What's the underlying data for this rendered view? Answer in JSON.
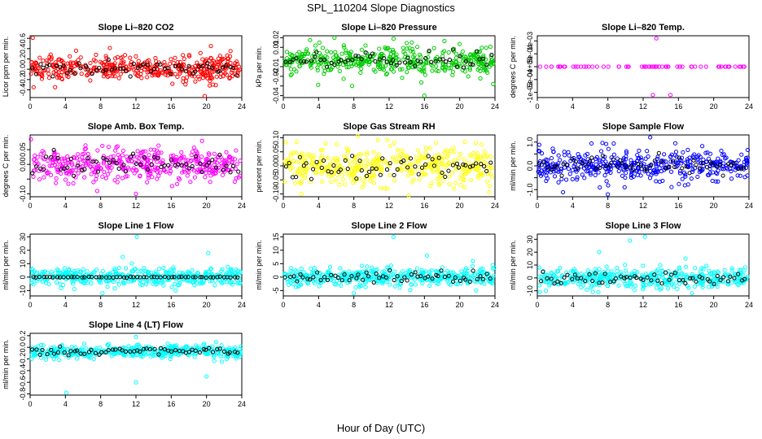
{
  "figure": {
    "title": "SPL_110204  Slope Diagnostics",
    "xlabel": "Hour of Day (UTC)"
  },
  "chart_data": [
    {
      "type": "scatter",
      "title": "Slope Li–820 CO2",
      "ylabel": "Licor ppm per min.",
      "xlim": [
        0,
        24
      ],
      "ylim": [
        -0.55,
        0.65
      ],
      "xticks": [
        0,
        4,
        8,
        12,
        16,
        20,
        24
      ],
      "yticks": [
        -0.4,
        -0.2,
        0.0,
        0.2,
        0.4,
        0.6
      ],
      "ytick_labels": [
        "-0.4",
        "-0.2",
        "0.0",
        "0.2",
        "0.4",
        "0.6"
      ],
      "point_color": "#ff0000",
      "n_points": 420,
      "n_black_points": 60,
      "center": 0.02,
      "spread": 0.13,
      "outliers": [
        [
          0.3,
          0.61
        ],
        [
          19.8,
          -0.52
        ],
        [
          20.5,
          0.45
        ],
        [
          0.4,
          -0.35
        ]
      ]
    },
    {
      "type": "scatter",
      "title": "Slope Li–820 Pressure",
      "ylabel": "kPa per min.",
      "xlim": [
        0,
        24
      ],
      "ylim": [
        -0.042,
        0.022
      ],
      "xticks": [
        0,
        4,
        8,
        12,
        16,
        20,
        24
      ],
      "yticks": [
        -0.04,
        -0.03,
        -0.02,
        -0.01,
        0.0,
        0.01,
        0.02
      ],
      "ytick_labels": [
        "-0.04",
        "",
        "-0.02",
        "-0.01",
        "",
        "0.01",
        "0.02"
      ],
      "point_color": "#00cc00",
      "n_points": 420,
      "n_black_points": 60,
      "center": -0.004,
      "spread": 0.007,
      "outliers": [
        [
          5.8,
          0.02
        ],
        [
          12.5,
          0.019
        ],
        [
          16.0,
          -0.04
        ],
        [
          7.8,
          -0.03
        ],
        [
          23.8,
          -0.028
        ]
      ]
    },
    {
      "type": "scatter",
      "title": "Slope Li–820 Temp.",
      "ylabel": "degrees C per min.",
      "xlim": [
        0,
        24
      ],
      "ylim": [
        -0.0012,
        0.0012
      ],
      "xticks": [
        0,
        4,
        8,
        12,
        16,
        20,
        24
      ],
      "yticks": [
        -0.001,
        -0.0005,
        0.0,
        0.0005,
        0.001
      ],
      "ytick_labels": [
        "-1e-03",
        "-5e-04",
        "0e+00",
        "5e-04",
        "1e-03"
      ],
      "point_color": "#ff00ff",
      "n_points": 70,
      "n_black_points": 0,
      "center": 0.0,
      "spread": 0.0,
      "outliers": [
        [
          13.5,
          0.0011
        ],
        [
          13.1,
          -0.0011
        ],
        [
          15.1,
          -0.0011
        ]
      ]
    },
    {
      "type": "scatter",
      "title": "Slope Amb. Box Temp.",
      "ylabel": "degrees C per min.",
      "xlim": [
        0,
        24
      ],
      "ylim": [
        -0.11,
        0.1
      ],
      "xticks": [
        0,
        4,
        8,
        12,
        16,
        20,
        24
      ],
      "yticks": [
        -0.1,
        -0.05,
        0.0,
        0.05
      ],
      "ytick_labels": [
        "-0.10",
        "",
        "0.00",
        "0.05"
      ],
      "point_color": "#ff00ff",
      "n_points": 420,
      "n_black_points": 60,
      "center": 0.0,
      "spread": 0.028,
      "outliers": [
        [
          0.1,
          0.085
        ],
        [
          12.0,
          -0.1
        ],
        [
          19.5,
          0.08
        ]
      ]
    },
    {
      "type": "scatter",
      "title": "Slope Gas Stream RH",
      "ylabel": "percent per min.",
      "xlim": [
        0,
        24
      ],
      "ylim": [
        -0.11,
        0.11
      ],
      "xticks": [
        0,
        4,
        8,
        12,
        16,
        20,
        24
      ],
      "yticks": [
        -0.1,
        -0.05,
        0.0,
        0.05,
        0.1
      ],
      "ytick_labels": [
        "-0.10",
        "-0.05",
        "0.00",
        "0.05",
        "0.10"
      ],
      "point_color": "#ffff00",
      "n_points": 420,
      "n_black_points": 60,
      "center": 0.0,
      "spread": 0.035,
      "outliers": [
        [
          1.5,
          0.085
        ],
        [
          11.5,
          -0.08
        ]
      ]
    },
    {
      "type": "scatter",
      "title": "Slope Sample Flow",
      "ylabel": "ml/min per min.",
      "xlim": [
        0,
        24
      ],
      "ylim": [
        -1.3,
        1.3
      ],
      "xticks": [
        0,
        4,
        8,
        12,
        16,
        20,
        24
      ],
      "yticks": [
        -1.0,
        -0.5,
        0.0,
        0.5,
        1.0
      ],
      "ytick_labels": [
        "-1.0",
        "",
        "0.0",
        "",
        "1.0"
      ],
      "point_color": "#0000ff",
      "n_points": 420,
      "n_black_points": 60,
      "center": 0.0,
      "spread": 0.33,
      "outliers": [
        [
          8.0,
          -1.2
        ],
        [
          12.8,
          1.2
        ],
        [
          9.9,
          -0.9
        ]
      ]
    },
    {
      "type": "scatter",
      "title": "Slope Line 1 Flow",
      "ylabel": "ml/min per min.",
      "xlim": [
        0,
        24
      ],
      "ylim": [
        -14,
        32
      ],
      "xticks": [
        0,
        4,
        8,
        12,
        16,
        20,
        24
      ],
      "yticks": [
        -10,
        0,
        10,
        20,
        30
      ],
      "ytick_labels": [
        "-10",
        "0",
        "10",
        "20",
        "30"
      ],
      "point_color": "#00ffff",
      "n_points": 420,
      "n_black_points": 60,
      "center": 0.0,
      "spread": 3.2,
      "outliers": [
        [
          12.1,
          30.0
        ],
        [
          10.5,
          15.0
        ],
        [
          16.5,
          -10.0
        ],
        [
          8.2,
          -12.0
        ],
        [
          20.2,
          18.0
        ]
      ]
    },
    {
      "type": "scatter",
      "title": "Slope Line 2 Flow",
      "ylabel": "ml/min per min.",
      "xlim": [
        0,
        24
      ],
      "ylim": [
        -7,
        16
      ],
      "xticks": [
        0,
        4,
        8,
        12,
        16,
        20,
        24
      ],
      "yticks": [
        -5,
        0,
        5,
        10,
        15
      ],
      "ytick_labels": [
        "-5",
        "0",
        "5",
        "10",
        "15"
      ],
      "point_color": "#00ffff",
      "n_points": 420,
      "n_black_points": 60,
      "center": 0.0,
      "spread": 1.7,
      "outliers": [
        [
          12.5,
          15.0
        ],
        [
          8.0,
          -6.0
        ],
        [
          16.3,
          8.0
        ],
        [
          21.5,
          6.0
        ]
      ]
    },
    {
      "type": "scatter",
      "title": "Slope Line 3 Flow",
      "ylabel": "ml/min per min.",
      "xlim": [
        0,
        24
      ],
      "ylim": [
        -14,
        34
      ],
      "xticks": [
        0,
        4,
        8,
        12,
        16,
        20,
        24
      ],
      "yticks": [
        -10,
        0,
        10,
        20,
        30
      ],
      "ytick_labels": [
        "-10",
        "0",
        "10",
        "20",
        "30"
      ],
      "point_color": "#00ffff",
      "n_points": 420,
      "n_black_points": 60,
      "center": 0.0,
      "spread": 4.0,
      "outliers": [
        [
          10.5,
          29.0
        ],
        [
          12.2,
          32.0
        ],
        [
          7.0,
          20.0
        ],
        [
          16.8,
          15.0
        ]
      ]
    },
    {
      "type": "scatter",
      "title": "Slope Line 4 (LT) Flow",
      "ylabel": "ml/min per min.",
      "xlim": [
        0,
        24
      ],
      "ylim": [
        -0.82,
        0.24
      ],
      "xticks": [
        0,
        4,
        8,
        12,
        16,
        20,
        24
      ],
      "yticks": [
        -0.8,
        -0.6,
        -0.4,
        -0.2,
        0.0,
        0.2
      ],
      "ytick_labels": [
        "-0.8",
        "-0.6",
        "-0.4",
        "-0.2",
        "0.0",
        "0.2"
      ],
      "point_color": "#00ffff",
      "n_points": 420,
      "n_black_points": 60,
      "center": -0.07,
      "spread": 0.055,
      "outliers": [
        [
          4.1,
          -0.78
        ],
        [
          12.0,
          -0.6
        ],
        [
          20.0,
          -0.5
        ],
        [
          12.0,
          0.18
        ]
      ]
    }
  ]
}
